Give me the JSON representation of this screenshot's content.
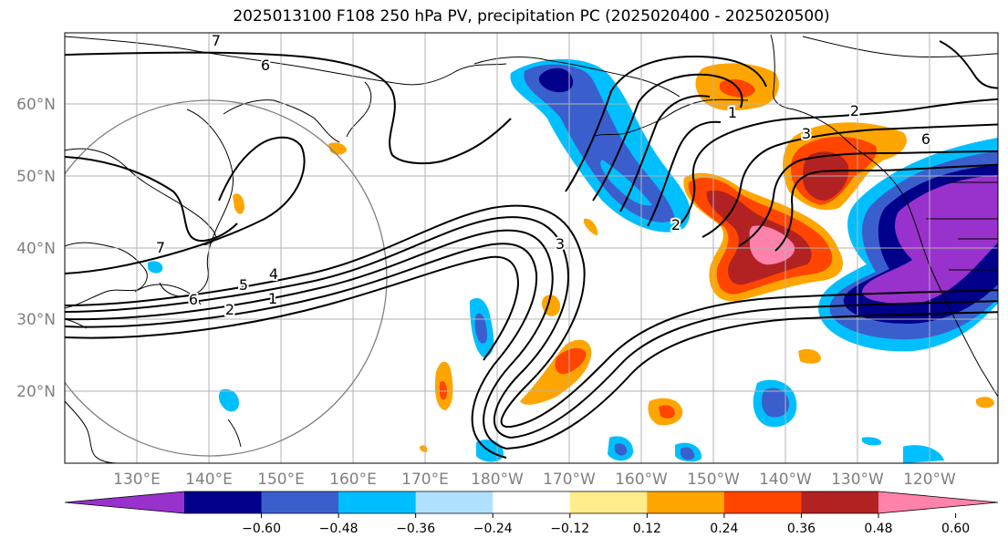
{
  "title": "2025013100 F108 250 hPa PV, precipitation PC (2025020400 - 2025020500)",
  "y_ticks": [
    "60°N",
    "50°N",
    "40°N",
    "30°N",
    "20°N"
  ],
  "x_ticks": [
    "130°E",
    "140°E",
    "150°E",
    "160°E",
    "170°E",
    "180°W",
    "170°W",
    "160°W",
    "150°W",
    "140°W",
    "130°W",
    "120°W"
  ],
  "contour_labels": [
    "7",
    "6",
    "7",
    "6",
    "5",
    "4",
    "2",
    "1",
    "3",
    "1",
    "2",
    "3",
    "6",
    "2"
  ],
  "colorbar": {
    "tick_labels": [
      "−0.60",
      "−0.48",
      "−0.36",
      "−0.24",
      "−0.12",
      "0.12",
      "0.24",
      "0.36",
      "0.48",
      "0.60"
    ],
    "colors": [
      "#9932cc",
      "#00008b",
      "#3a5fcd",
      "#00bfff",
      "#b0e2ff",
      "#ffffff",
      "#ffec8b",
      "#ffa500",
      "#ff4500",
      "#b22222",
      "#ff82ab"
    ]
  }
}
